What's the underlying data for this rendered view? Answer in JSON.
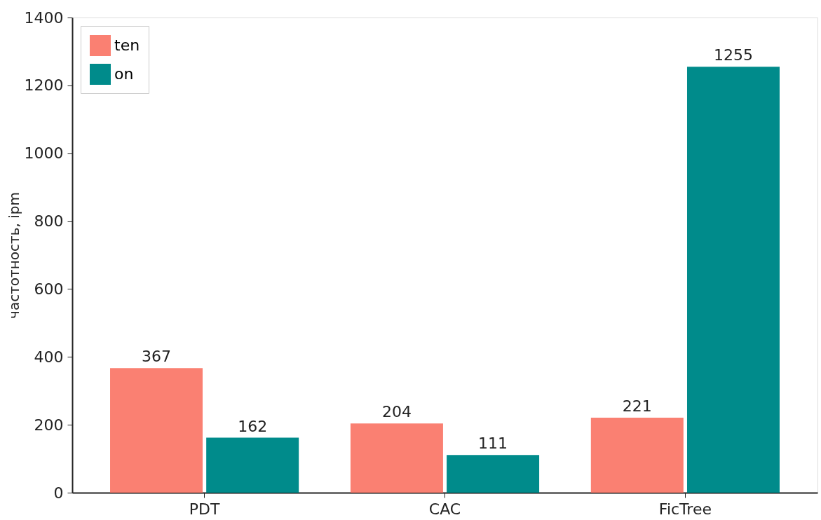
{
  "chart_data": {
    "type": "bar",
    "ylabel": "частотность, ipm",
    "categories": [
      "PDT",
      "CAC",
      "FicTree"
    ],
    "series": [
      {
        "name": "ten",
        "color": "#fa8072",
        "values": [
          367,
          204,
          221
        ]
      },
      {
        "name": "on",
        "color": "#008b8b",
        "values": [
          162,
          111,
          1255
        ]
      }
    ],
    "ylim": [
      0,
      1400
    ],
    "yticks": [
      0,
      200,
      400,
      600,
      800,
      1000,
      1200,
      1400
    ],
    "data_labels": true,
    "grid": false,
    "legend": "top left"
  }
}
